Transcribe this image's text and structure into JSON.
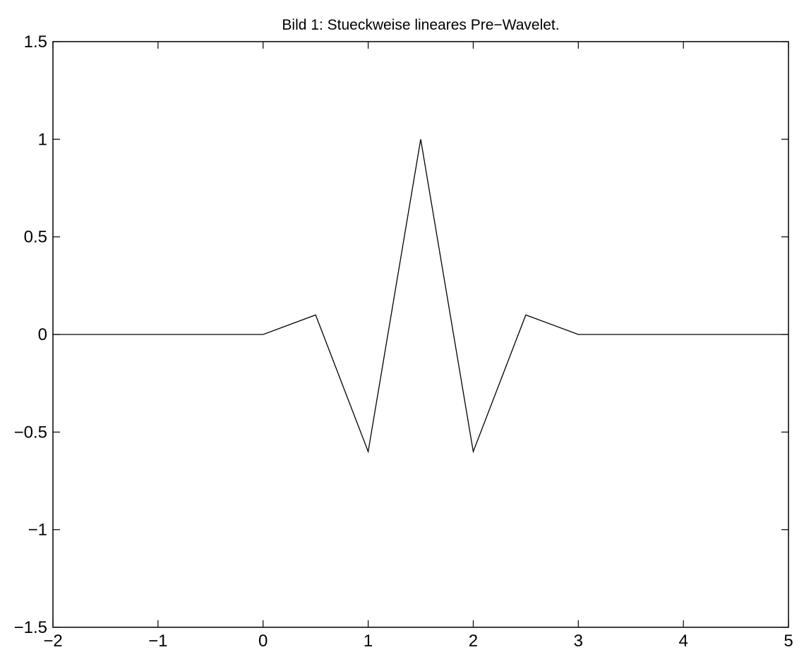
{
  "chart_data": {
    "type": "line",
    "title": "Bild 1: Stueckweise lineares Pre−Wavelet.",
    "xlabel": "",
    "ylabel": "",
    "xlim": [
      -2,
      5
    ],
    "ylim": [
      -1.5,
      1.5
    ],
    "x_ticks": [
      -2,
      -1,
      0,
      1,
      2,
      3,
      4,
      5
    ],
    "x_tick_labels": [
      "−2",
      "−1",
      "0",
      "1",
      "2",
      "3",
      "4",
      "5"
    ],
    "y_ticks": [
      -1.5,
      -1,
      -0.5,
      0,
      0.5,
      1,
      1.5
    ],
    "y_tick_labels": [
      "−1.5",
      "−1",
      "−0.5",
      "0",
      "0.5",
      "1",
      "1.5"
    ],
    "grid": false,
    "series": [
      {
        "x": [
          -2,
          0,
          0.5,
          1,
          1.5,
          2,
          2.5,
          3,
          5
        ],
        "y": [
          0,
          0,
          0.1,
          -0.6,
          1,
          -0.6,
          0.1,
          0,
          0
        ],
        "color": "#000000"
      }
    ]
  }
}
